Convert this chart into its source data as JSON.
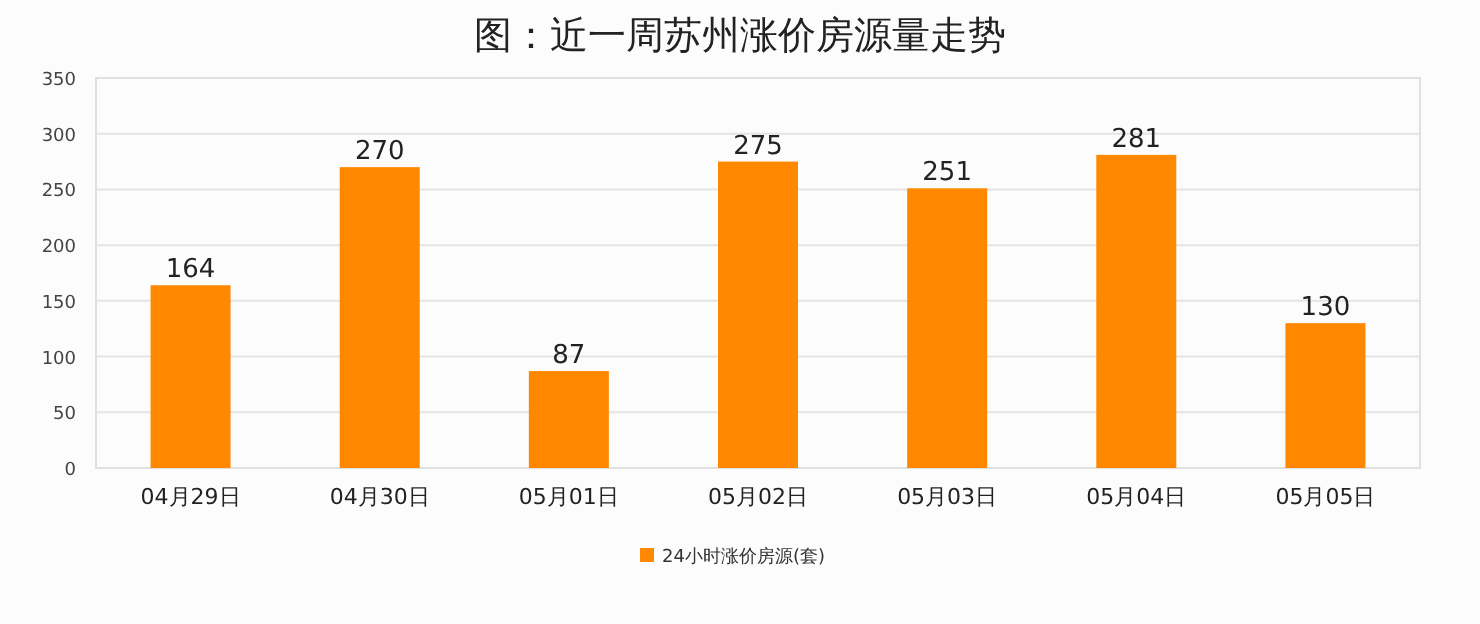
{
  "chart_data": {
    "type": "bar",
    "title": "图：近一周苏州涨价房源量走势",
    "categories": [
      "04月29日",
      "04月30日",
      "05月01日",
      "05月02日",
      "05月03日",
      "05月04日",
      "05月05日"
    ],
    "series": [
      {
        "name": "24小时涨价房源(套)",
        "color": "#ff8800",
        "values": [
          164,
          270,
          87,
          275,
          251,
          281,
          130
        ]
      }
    ],
    "ylim": [
      0,
      350
    ],
    "yticks": [
      0,
      50,
      100,
      150,
      200,
      250,
      300,
      350
    ],
    "grid": "y",
    "legend": "bottom",
    "data_labels": true
  }
}
